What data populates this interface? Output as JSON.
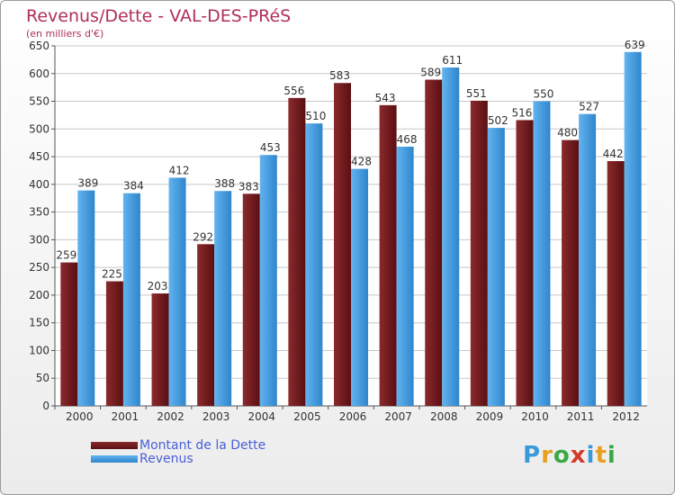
{
  "title": "Revenus/Dette - VAL-DES-PRéS",
  "subtitle": "(en milliers d'€)",
  "logo": {
    "letters": [
      "P",
      "r",
      "o",
      "x",
      "i",
      "t",
      "i"
    ],
    "colors": [
      "#3a9ad9",
      "#e8a020",
      "#3aa845",
      "#d33a2a",
      "#3a9ad9",
      "#e8a020",
      "#3aa845"
    ]
  },
  "chart_data": {
    "type": "bar",
    "categories": [
      "2000",
      "2001",
      "2002",
      "2003",
      "2004",
      "2005",
      "2006",
      "2007",
      "2008",
      "2009",
      "2010",
      "2011",
      "2012"
    ],
    "series": [
      {
        "name": "Montant de la Dette",
        "color": "#7d1f22",
        "values": [
          259,
          225,
          203,
          292,
          383,
          556,
          583,
          543,
          589,
          551,
          516,
          480,
          442
        ]
      },
      {
        "name": "Revenus",
        "color": "#3f9be0",
        "values": [
          389,
          384,
          412,
          388,
          453,
          510,
          428,
          468,
          611,
          502,
          550,
          527,
          639
        ]
      }
    ],
    "ylim": [
      0,
      650
    ],
    "yticks": [
      0,
      50,
      100,
      150,
      200,
      250,
      300,
      350,
      400,
      450,
      500,
      550,
      600,
      650
    ],
    "grid": true,
    "legend_position": "bottom-left"
  }
}
